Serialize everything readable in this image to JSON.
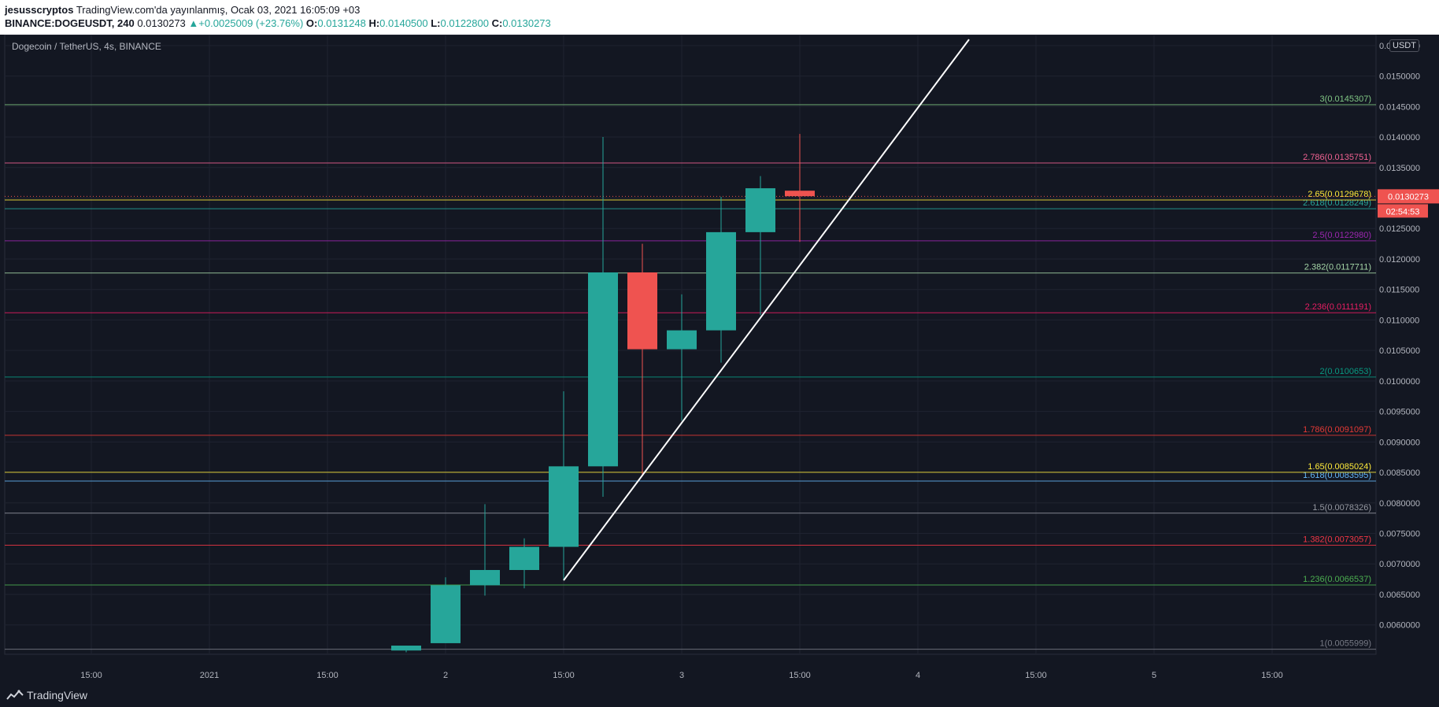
{
  "header": {
    "author": "jesusscryptos",
    "publish_text": "TradingView.com'da yayınlanmış, Ocak 03, 2021 16:05:09 +03",
    "symbol": "BINANCE:DOGEUSDT, 240",
    "last": "0.0130273",
    "change": "+0.0025009 (+23.76%)",
    "o_label": "O:",
    "o_value": "0.0131248",
    "h_label": "H:",
    "h_value": "0.0140500",
    "l_label": "L:",
    "l_value": "0.0122800",
    "c_label": "C:",
    "c_value": "0.0130273"
  },
  "chart_title": "Dogecoin / TetherUS, 4s, BINANCE",
  "currency_badge": "USDT",
  "brand": "TradingView",
  "colors": {
    "background": "#131722",
    "grid": "#1f2330",
    "bull": "#26a69a",
    "bear": "#ef5350",
    "text": "#b2b5be",
    "trendline": "#ffffff"
  },
  "chart_data": {
    "type": "candlestick",
    "title": "Dogecoin / TetherUS, 4s, BINANCE",
    "ylim": [
      0.00557,
      0.01555
    ],
    "y_ticks": [
      "0.0060000",
      "0.0065000",
      "0.0070000",
      "0.0075000",
      "0.0080000",
      "0.0085000",
      "0.0090000",
      "0.0095000",
      "0.0100000",
      "0.0105000",
      "0.0110000",
      "0.0115000",
      "0.0120000",
      "0.0125000",
      "0.0130000",
      "0.0135000",
      "0.0140000",
      "0.0145000",
      "0.0150000",
      "0.0155000"
    ],
    "x_ticks": [
      {
        "label": "15:00",
        "slot": -12
      },
      {
        "label": "2021",
        "slot": -9
      },
      {
        "label": "15:00",
        "slot": -6
      },
      {
        "label": "2",
        "slot": -3
      },
      {
        "label": "15:00",
        "slot": 0
      },
      {
        "label": "3",
        "slot": 3
      },
      {
        "label": "15:00",
        "slot": 6
      },
      {
        "label": "4",
        "slot": 9
      },
      {
        "label": "15:00",
        "slot": 12
      },
      {
        "label": "5",
        "slot": 15
      },
      {
        "label": "15:00",
        "slot": 18
      }
    ],
    "candles": [
      {
        "slot": -4,
        "o": 0.00558,
        "h": 0.00566,
        "l": 0.00555,
        "c": 0.00566
      },
      {
        "slot": -3,
        "o": 0.0057,
        "h": 0.00678,
        "l": 0.0057,
        "c": 0.00665
      },
      {
        "slot": -2,
        "o": 0.00665,
        "h": 0.00798,
        "l": 0.00648,
        "c": 0.0069
      },
      {
        "slot": -1,
        "o": 0.0069,
        "h": 0.00742,
        "l": 0.0066,
        "c": 0.00728
      },
      {
        "slot": 0,
        "o": 0.00728,
        "h": 0.00983,
        "l": 0.00673,
        "c": 0.0086
      },
      {
        "slot": 1,
        "o": 0.0086,
        "h": 0.014,
        "l": 0.0081,
        "c": 0.01178
      },
      {
        "slot": 2,
        "o": 0.01178,
        "h": 0.01225,
        "l": 0.00845,
        "c": 0.01052
      },
      {
        "slot": 3,
        "o": 0.01052,
        "h": 0.01142,
        "l": 0.00935,
        "c": 0.01083
      },
      {
        "slot": 4,
        "o": 0.01083,
        "h": 0.01302,
        "l": 0.0103,
        "c": 0.01244
      },
      {
        "slot": 5,
        "o": 0.01244,
        "h": 0.01336,
        "l": 0.01108,
        "c": 0.01316
      },
      {
        "slot": 6,
        "o": 0.01312,
        "h": 0.01405,
        "l": 0.01228,
        "c": 0.01303
      }
    ],
    "fib_levels": [
      {
        "label": "1(0.0055999)",
        "value": 0.0055999,
        "color": "#787b86"
      },
      {
        "label": "1.236(0.0066537)",
        "value": 0.0066537,
        "color": "#4caf50"
      },
      {
        "label": "1.382(0.0073057)",
        "value": 0.0073057,
        "color": "#f23645"
      },
      {
        "label": "1.5(0.0078326)",
        "value": 0.0078326,
        "color": "#9598a1"
      },
      {
        "label": "1.618(0.0083595)",
        "value": 0.0083595,
        "color": "#64b5f6"
      },
      {
        "label": "1.65(0.0085024)",
        "value": 0.0085024,
        "color": "#ffeb3b"
      },
      {
        "label": "1.786(0.0091097)",
        "value": 0.0091097,
        "color": "#e53935"
      },
      {
        "label": "2(0.0100653)",
        "value": 0.0100653,
        "color": "#089981"
      },
      {
        "label": "2.236(0.0111191)",
        "value": 0.0111191,
        "color": "#e91e63"
      },
      {
        "label": "2.382(0.0117711)",
        "value": 0.0117711,
        "color": "#a5d6a7"
      },
      {
        "label": "2.5(0.0122980)",
        "value": 0.012298,
        "color": "#9c27b0"
      },
      {
        "label": "2.618(0.0128249)",
        "value": 0.0128249,
        "color": "#26a69a"
      },
      {
        "label": "2.65(0.0129678)",
        "value": 0.0129678,
        "color": "#ffeb3b"
      },
      {
        "label": "2.786(0.0135751)",
        "value": 0.0135751,
        "color": "#f06292"
      },
      {
        "label": "3(0.0145307)",
        "value": 0.0145307,
        "color": "#81c784"
      }
    ],
    "trendline": {
      "from": {
        "slot": 0,
        "y": 0.00673
      },
      "to": {
        "slot": 10.3,
        "y": 0.0156
      }
    },
    "last_price": {
      "value": 0.0130273,
      "label": "0.0130273",
      "countdown": "02:54:53"
    }
  }
}
